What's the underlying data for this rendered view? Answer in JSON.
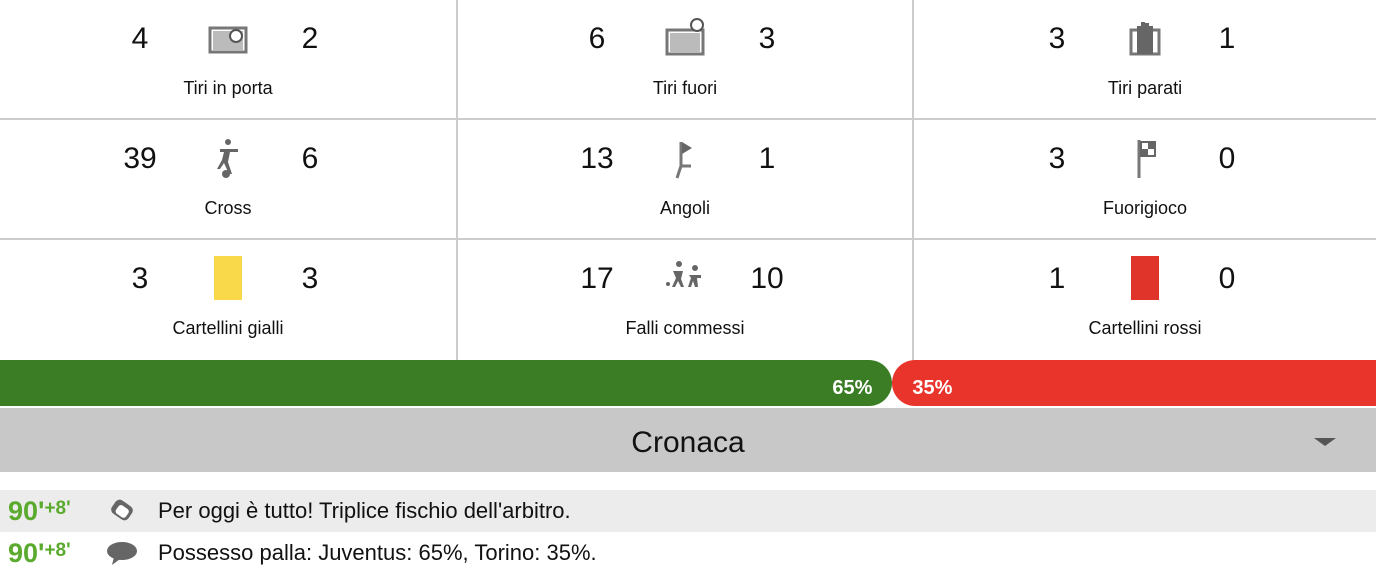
{
  "stats": [
    {
      "home": "4",
      "away": "2",
      "label": "Tiri in porta",
      "icon": "goal-ball-icon"
    },
    {
      "home": "6",
      "away": "3",
      "label": "Tiri fuori",
      "icon": "goal-ball-outside-icon"
    },
    {
      "home": "3",
      "away": "1",
      "label": "Tiri parati",
      "icon": "goalkeeper-glove-icon"
    },
    {
      "home": "39",
      "away": "6",
      "label": "Cross",
      "icon": "player-kick-icon"
    },
    {
      "home": "13",
      "away": "1",
      "label": "Angoli",
      "icon": "corner-flag-icon"
    },
    {
      "home": "3",
      "away": "0",
      "label": "Fuorigioco",
      "icon": "offside-flag-icon"
    },
    {
      "home": "3",
      "away": "3",
      "label": "Cartellini gialli",
      "icon": "yellow-card-icon",
      "color": "#f9d84a"
    },
    {
      "home": "17",
      "away": "10",
      "label": "Falli commessi",
      "icon": "foul-icon"
    },
    {
      "home": "1",
      "away": "0",
      "label": "Cartellini rossi",
      "icon": "red-card-icon",
      "color": "#e0342a"
    }
  ],
  "possession": {
    "home": "65%",
    "away": "35%",
    "home_value": 65,
    "away_value": 35,
    "home_color": "#3a7d24",
    "away_color": "#e8342a"
  },
  "cronaca": {
    "title": "Cronaca",
    "events": [
      {
        "minute": "90'",
        "extra": "+8'",
        "icon": "whistle-icon",
        "text": "Per oggi è tutto! Triplice fischio dell'arbitro."
      },
      {
        "minute": "90'",
        "extra": "+8'",
        "icon": "comment-icon",
        "text": "Possesso palla: Juventus: 65%, Torino: 35%."
      }
    ]
  }
}
